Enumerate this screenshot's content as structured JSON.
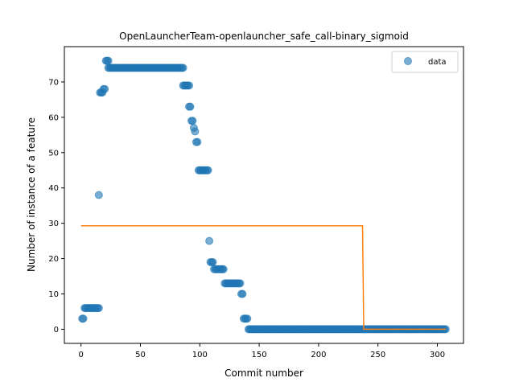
{
  "chart_data": {
    "type": "scatter",
    "title": "OpenLauncherTeam-openlauncher_safe_call-binary_sigmoid",
    "xlabel": "Commit number",
    "ylabel": "Number of instance of a feature",
    "xlim": [
      -14,
      322
    ],
    "ylim": [
      -4,
      80
    ],
    "xticks": [
      0,
      50,
      100,
      150,
      200,
      250,
      300
    ],
    "yticks": [
      0,
      10,
      20,
      30,
      40,
      50,
      60,
      70
    ],
    "grid": false,
    "legend": {
      "placement": "upper right",
      "entries": [
        "data"
      ]
    },
    "colors": {
      "data": "#1f77b4",
      "fit": "#ff7f0e"
    },
    "series": [
      {
        "name": "data",
        "kind": "scatter",
        "runs": [
          {
            "x_start": 1,
            "x_end": 2,
            "y": 3
          },
          {
            "x_start": 3,
            "x_end": 15,
            "y": 6
          },
          {
            "x_start": 15,
            "x_end": 15,
            "y": 38
          },
          {
            "x_start": 16,
            "x_end": 18,
            "y": 67
          },
          {
            "x_start": 19,
            "x_end": 20,
            "y": 68
          },
          {
            "x_start": 21,
            "x_end": 23,
            "y": 76
          },
          {
            "x_start": 23,
            "x_end": 86,
            "y": 74
          },
          {
            "x_start": 86,
            "x_end": 91,
            "y": 69
          },
          {
            "x_start": 91,
            "x_end": 92,
            "y": 63
          },
          {
            "x_start": 93,
            "x_end": 94,
            "y": 59
          },
          {
            "x_start": 95,
            "x_end": 95,
            "y": 57
          },
          {
            "x_start": 96,
            "x_end": 96,
            "y": 56
          },
          {
            "x_start": 97,
            "x_end": 98,
            "y": 53
          },
          {
            "x_start": 99,
            "x_end": 107,
            "y": 45
          },
          {
            "x_start": 108,
            "x_end": 108,
            "y": 25
          },
          {
            "x_start": 109,
            "x_end": 111,
            "y": 19
          },
          {
            "x_start": 112,
            "x_end": 120,
            "y": 17
          },
          {
            "x_start": 121,
            "x_end": 134,
            "y": 13
          },
          {
            "x_start": 135,
            "x_end": 136,
            "y": 10
          },
          {
            "x_start": 137,
            "x_end": 140,
            "y": 3
          },
          {
            "x_start": 141,
            "x_end": 307,
            "y": 0
          }
        ]
      },
      {
        "name": "",
        "kind": "step-line",
        "points": [
          [
            0,
            29.3
          ],
          [
            237,
            29.3
          ],
          [
            238,
            0
          ],
          [
            307,
            0
          ]
        ]
      }
    ]
  }
}
